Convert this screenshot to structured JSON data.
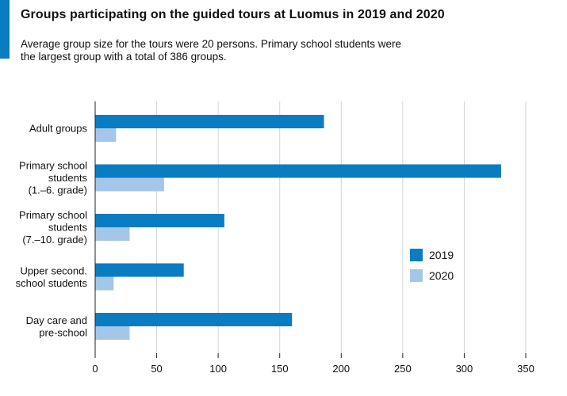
{
  "header": {
    "title": "Groups participating on the guided tours at Luomus in 2019 and 2020",
    "subtitle": "Average group size for the tours were 20 persons. Primary school students were the largest group with a total of 386 groups."
  },
  "colors": {
    "accent": "#0a7cc2",
    "series_2019": "#0a7cc2",
    "series_2020": "#a4c6e8",
    "grid": "#d4d4d4"
  },
  "chart_data": {
    "type": "bar",
    "orientation": "horizontal",
    "categories": [
      [
        "Adult groups"
      ],
      [
        "Primary school",
        "students",
        "(1.–6. grade)"
      ],
      [
        "Primary school",
        "students",
        "(7.–10. grade)"
      ],
      [
        "Upper second.",
        "school students"
      ],
      [
        "Day care and",
        "pre-school"
      ]
    ],
    "series": [
      {
        "name": "2019",
        "values": [
          186,
          330,
          105,
          72,
          160
        ]
      },
      {
        "name": "2020",
        "values": [
          17,
          56,
          28,
          15,
          28
        ]
      }
    ],
    "xlim": [
      0,
      350
    ],
    "xticks": [
      0,
      50,
      100,
      150,
      200,
      250,
      300,
      350
    ],
    "grid": true,
    "legend": "right"
  }
}
